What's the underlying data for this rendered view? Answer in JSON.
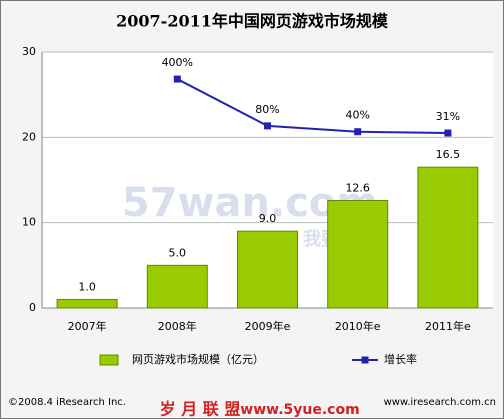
{
  "chart_data": {
    "type": "bar",
    "title": "2007-2011年中国网页游戏市场规模",
    "categories": [
      "2007年",
      "2008年",
      "2009年e",
      "2010年e",
      "2011年e"
    ],
    "series": [
      {
        "name": "网页游戏市场规模（亿元）",
        "color": "#99cc00",
        "values": [
          1.0,
          5.0,
          9.0,
          12.6,
          16.5
        ],
        "value_labels": [
          "1.0",
          "5.0",
          "9.0",
          "12.6",
          "16.5"
        ]
      },
      {
        "name": "增长率",
        "type": "line",
        "axis": "y2",
        "color": "#2323b0",
        "values": [
          null,
          400,
          80,
          40,
          31
        ],
        "value_labels": [
          null,
          "400%",
          "80%",
          "40%",
          "31%"
        ]
      }
    ],
    "ylim": [
      0,
      30
    ],
    "yticks": [
      0,
      10,
      20,
      30
    ],
    "y2lim": [
      -1165,
      585
    ],
    "grid": true,
    "legend": "bottom",
    "source": "©2008.4 iResearch Inc.",
    "website": "www.iresearch.com.cn",
    "watermarks": [
      "57wan.com",
      "我要玩",
      "岁 月 联 盟",
      "www.5yue.com"
    ]
  }
}
